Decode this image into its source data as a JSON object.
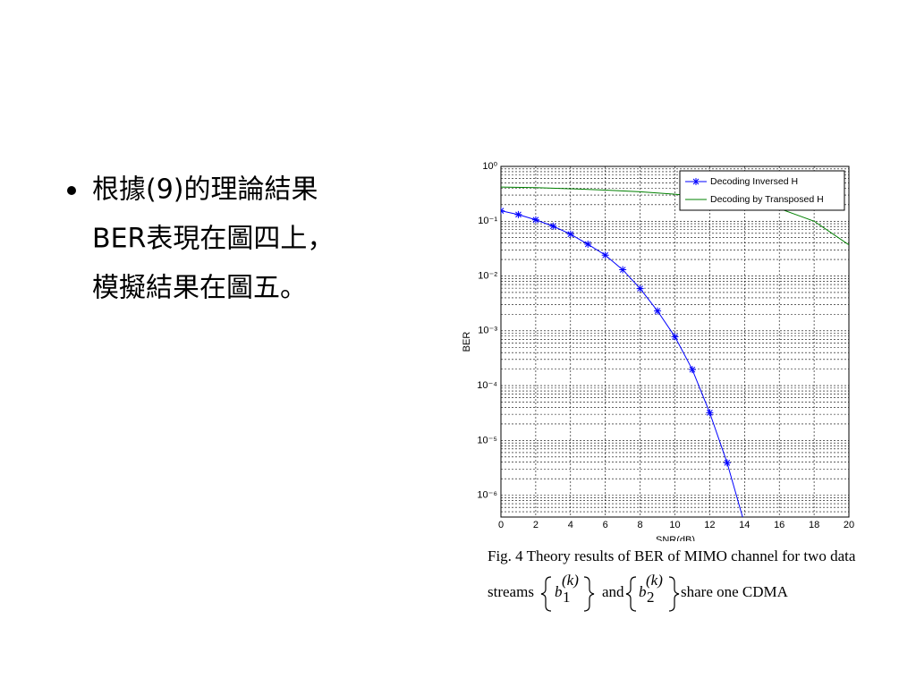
{
  "bullet": {
    "lines": [
      "根據(9)的理論結果",
      "BER表現在圖四上，",
      "模擬結果在圖五。"
    ]
  },
  "chart_data": {
    "type": "line",
    "x_label": "SNR(dB)",
    "y_label": "BER",
    "xlim": [
      0,
      20
    ],
    "xticks": [
      0,
      2,
      4,
      6,
      8,
      10,
      12,
      14,
      16,
      18,
      20
    ],
    "ylim": [
      4e-07,
      1
    ],
    "log_y": true,
    "grid": true,
    "legend": "upper right",
    "yticks": [
      {
        "value": 1,
        "label": "10⁰"
      },
      {
        "value": 0.1,
        "label": "10⁻¹"
      },
      {
        "value": 0.01,
        "label": "10⁻²"
      },
      {
        "value": 0.001,
        "label": "10⁻³"
      },
      {
        "value": 0.0001,
        "label": "10⁻⁴"
      },
      {
        "value": 1e-05,
        "label": "10⁻⁵"
      },
      {
        "value": 1e-06,
        "label": "10⁻⁶"
      }
    ],
    "series": [
      {
        "name": "Decoding Inversed H",
        "color": "#0000ff",
        "marker": "*",
        "x": [
          0,
          1,
          2,
          3,
          4,
          5,
          6,
          7,
          8,
          9,
          10,
          11,
          12,
          13,
          14
        ],
        "values": [
          0.155,
          0.132,
          0.106,
          0.081,
          0.058,
          0.038,
          0.024,
          0.013,
          0.0059,
          0.0023,
          0.00078,
          0.000196,
          3.2e-05,
          3.9e-06,
          3e-07
        ]
      },
      {
        "name": "Decoding by Transposed H",
        "color": "#008000",
        "x": [
          0,
          2,
          4,
          6,
          8,
          10,
          12,
          14,
          16,
          18,
          20
        ],
        "values": [
          0.42,
          0.41,
          0.39,
          0.37,
          0.345,
          0.31,
          0.27,
          0.23,
          0.17,
          0.1,
          0.037
        ]
      }
    ]
  },
  "caption": {
    "line1": "Fig. 4   Theory results of BER of MIMO channel for two data",
    "line2": {
      "start": "streams",
      "math1": {
        "base": "b",
        "sub": "1",
        "sup": "(k)"
      },
      "middle": "and",
      "math2": {
        "base": "b",
        "sub": "2",
        "sup": "(k)"
      },
      "end": "share one CDMA"
    }
  }
}
